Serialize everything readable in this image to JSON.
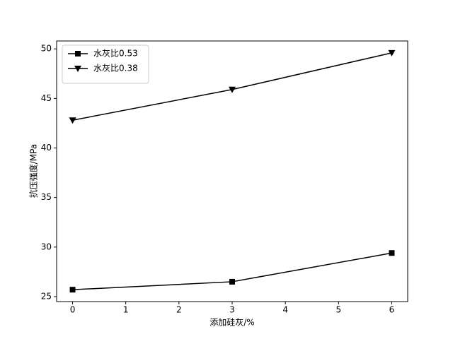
{
  "chart_data": {
    "type": "line",
    "xlabel": "添加硅灰/%",
    "ylabel": "抗压强度/MPa",
    "x": [
      0,
      3,
      6
    ],
    "series": [
      {
        "name": "水灰比0.53",
        "color": "#000000",
        "marker": "square",
        "values": [
          25.7,
          26.5,
          29.4
        ]
      },
      {
        "name": "水灰比0.38",
        "color": "#000000",
        "marker": "triangle-down",
        "values": [
          42.8,
          45.9,
          49.6
        ]
      }
    ],
    "xlim": [
      -0.3,
      6.3
    ],
    "xticks": [
      0,
      1,
      2,
      3,
      4,
      5,
      6
    ],
    "ylim": [
      24.5,
      50.8
    ],
    "yticks": [
      25,
      30,
      35,
      40,
      45,
      50
    ],
    "legend": "upper left",
    "grid": false
  }
}
